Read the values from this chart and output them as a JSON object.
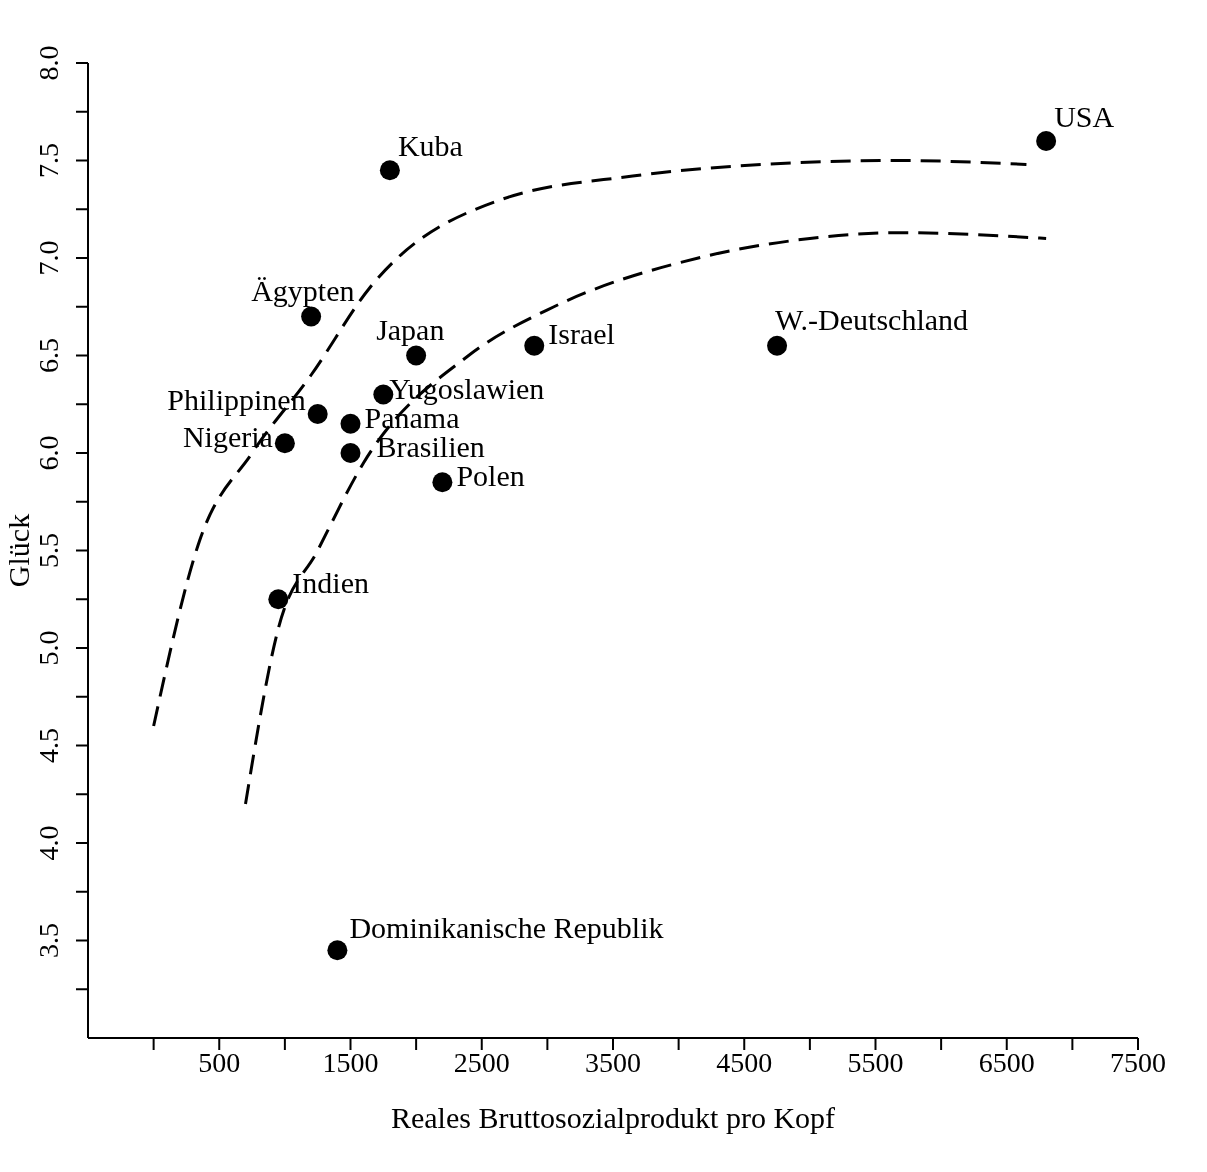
{
  "chart_data": {
    "type": "scatter",
    "xlabel": "Reales Bruttosozialprodukt pro Kopf",
    "ylabel": "Glück",
    "xlim": [
      -500,
      7500
    ],
    "ylim": [
      3,
      8
    ],
    "xticks": [
      {
        "value": 0,
        "label": null
      },
      500,
      {
        "value": 1000,
        "label": null
      },
      1500,
      {
        "value": 2000,
        "label": null
      },
      2500,
      {
        "value": 3000,
        "label": null
      },
      3500,
      {
        "value": 4000,
        "label": null
      },
      4500,
      {
        "value": 5000,
        "label": null
      },
      5500,
      {
        "value": 6000,
        "label": null
      },
      6500,
      {
        "value": 7000,
        "label": null
      },
      7500
    ],
    "yticks": [
      {
        "value": 3.25,
        "label": null
      },
      3.5,
      {
        "value": 3.75,
        "label": null
      },
      {
        "value": 4,
        "label": "4.0"
      },
      {
        "value": 4.25,
        "label": null
      },
      4.5,
      {
        "value": 4.75,
        "label": null
      },
      {
        "value": 5,
        "label": "5.0"
      },
      {
        "value": 5.25,
        "label": null
      },
      5.5,
      {
        "value": 5.75,
        "label": null
      },
      {
        "value": 6,
        "label": "6.0"
      },
      {
        "value": 6.25,
        "label": null
      },
      6.5,
      {
        "value": 6.75,
        "label": null
      },
      {
        "value": 7,
        "label": "7.0"
      },
      {
        "value": 7.25,
        "label": null
      },
      7.5,
      {
        "value": 7.75,
        "label": null
      },
      {
        "value": 8,
        "label": "8.0"
      }
    ],
    "marker": "circle",
    "series": [
      {
        "name": "Kuba",
        "color": "#000000",
        "x": [
          1800
        ],
        "values": [
          7.45
        ]
      },
      {
        "name": "USA",
        "color": "#000000",
        "x": [
          6800
        ],
        "values": [
          7.6
        ]
      },
      {
        "name": "Ägypten",
        "color": "#000000",
        "x": [
          1200
        ],
        "values": [
          6.7
        ]
      },
      {
        "name": "Japan",
        "color": "#000000",
        "x": [
          2000
        ],
        "values": [
          6.5
        ]
      },
      {
        "name": "Israel",
        "color": "#000000",
        "x": [
          2900
        ],
        "values": [
          6.55
        ]
      },
      {
        "name": "W.-Deutschland",
        "color": "#000000",
        "x": [
          4750
        ],
        "values": [
          6.55
        ]
      },
      {
        "name": "Yugoslawien",
        "color": "#000000",
        "x": [
          1750
        ],
        "values": [
          6.3
        ]
      },
      {
        "name": "Philippinen",
        "color": "#000000",
        "x": [
          1250
        ],
        "values": [
          6.2
        ]
      },
      {
        "name": "Panama",
        "color": "#000000",
        "x": [
          1500
        ],
        "values": [
          6.15
        ]
      },
      {
        "name": "Nigeria",
        "color": "#000000",
        "x": [
          1000
        ],
        "values": [
          6.05
        ]
      },
      {
        "name": "Brasilien",
        "color": "#000000",
        "x": [
          1500
        ],
        "values": [
          6.0
        ]
      },
      {
        "name": "Polen",
        "color": "#000000",
        "x": [
          2200
        ],
        "values": [
          5.85
        ]
      },
      {
        "name": "Indien",
        "color": "#000000",
        "x": [
          950
        ],
        "values": [
          5.25
        ]
      },
      {
        "name": "Dominikanische Republik",
        "color": "#000000",
        "x": [
          1400
        ],
        "values": [
          3.45
        ]
      },
      {
        "type": "line",
        "color": "#000000",
        "marker": "none",
        "line_style": "dashed",
        "x": [
          0,
          350,
          750,
          1200,
          1650,
          2650,
          3650,
          4650,
          5650,
          6650
        ],
        "values": [
          4.6,
          5.55,
          6.0,
          6.4,
          6.85,
          7.3,
          7.42,
          7.48,
          7.5,
          7.48
        ]
      },
      {
        "type": "line",
        "color": "#000000",
        "marker": "none",
        "line_style": "dashed",
        "x": [
          700,
          950,
          1250,
          1600,
          2400,
          3050,
          4150,
          5000,
          5700,
          6800
        ],
        "values": [
          4.2,
          5.1,
          5.5,
          5.95,
          6.5,
          6.75,
          7.0,
          7.1,
          7.13,
          7.1
        ]
      }
    ]
  }
}
